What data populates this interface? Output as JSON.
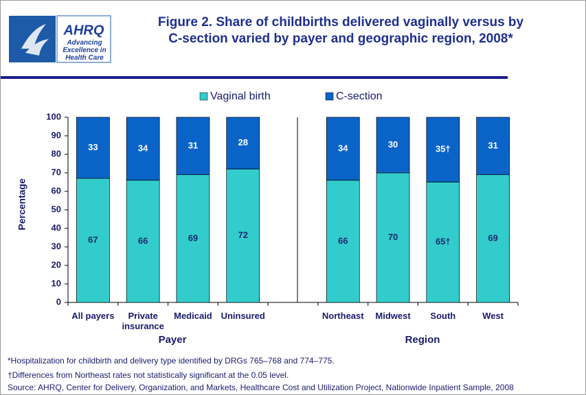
{
  "header": {
    "logo_text": "AHRQ",
    "tagline": "Advancing Excellence in Health Care"
  },
  "chart_data": {
    "type": "stacked-bar",
    "title": [
      "Figure 2. Share of childbirths delivered vaginally versus by",
      "C-section varied by payer and geographic region, 2008*"
    ],
    "y_label": "Percentage",
    "categories": [
      "All payers",
      "Private insurance",
      "Medicaid",
      "Uninsured",
      null,
      "Northeast",
      "Midwest",
      "South",
      "West"
    ],
    "series": [
      {
        "name": "Vaginal birth",
        "color": "#33cccc",
        "values": [
          67,
          66,
          69,
          72,
          null,
          66,
          70,
          65,
          69
        ],
        "value_labels": [
          "67",
          "66",
          "69",
          "72",
          null,
          "66",
          "70",
          "65†",
          "69"
        ]
      },
      {
        "name": "C-section",
        "color": "#0a64c8",
        "values": [
          33,
          34,
          31,
          28,
          null,
          34,
          30,
          35,
          31
        ],
        "value_labels": [
          "33",
          "34",
          "31",
          "28",
          null,
          "34",
          "30",
          "35†",
          "31"
        ]
      }
    ],
    "groups": [
      "Payer",
      "Region"
    ],
    "ylim": [
      0,
      100
    ],
    "yticks": [
      0,
      10,
      20,
      30,
      40,
      50,
      60,
      70,
      80,
      90,
      100
    ],
    "legend": "top",
    "notes": [
      "*Hospitalization for childbirth and delivery type identified by DRGs 765–768 and 774–775.",
      "†Differences from Northeast rates not statistically significant at the 0.05 level.",
      "Source: AHRQ,  Center for Delivery, Organization, and Markets, Healthcare Cost and Utilization Project, Nationwide Inpatient Sample, 2008"
    ]
  }
}
